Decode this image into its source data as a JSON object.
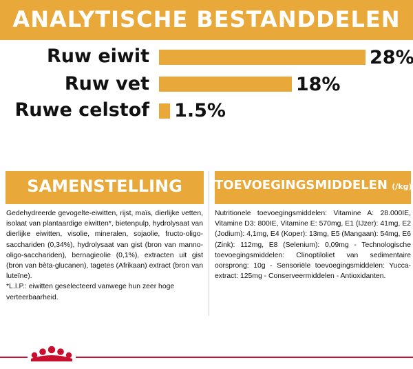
{
  "header": {
    "title": "ANALYTISCHE BESTANDDELEN"
  },
  "nutrients": [
    {
      "label": "Ruw eiwit",
      "value": "28%",
      "percent": 28
    },
    {
      "label": "Ruw vet",
      "value": "18%",
      "percent": 18
    },
    {
      "label": "Ruwe celstof",
      "value": "1.5%",
      "percent": 1.5
    }
  ],
  "composition": {
    "title": "SAMENSTELLING",
    "text": "Gedehydreerde gevogelte-eiwitten, rijst, maïs, dierlijke vetten, isolaat van plantaardige eiwitten*, bietenpulp, hydrolysaat van dierlijke eiwitten, visolie, mineralen, sojaolie, fructo-oligo-sacchariden (0,34%), hydrolysaat van gist (bron van manno-oligo-sacchariden), bernagieolie (0,1%), extracten uit gist (bron van bèta-glucanen), tagetes (Afrikaan) extract (bron van luteïne).",
    "note": "*L.I.P.: eiwitten geselecteerd vanwege hun zeer hoge verteerbaarheid."
  },
  "additives": {
    "title": "TOEVOEGINGSMIDDELEN",
    "unit": "(/kg)",
    "text": "Nutritionele toevoegingsmiddelen: Vitamine A: 28.000IE, Vitamine D3: 800IE, Vitamine E: 570mg, E1 (IJzer): 41mg, E2 (Jodium): 4,1mg, E4 (Koper): 13mg, E5 (Mangaan): 54mg, E6 (Zink): 112mg, E8 (Selenium): 0,09mg - Technologische toevoegingsmiddelen: Clinoptiloliet van sedimentaire oorsprong: 10g - Sensoriële toevoegingsmiddelen: Yucca-extract: 125mg - Conserveermiddelen - Antioxidanten."
  },
  "colors": {
    "accent": "#e8a93a",
    "brand_red": "#c8102e",
    "text": "#111111"
  },
  "logo": {
    "name": "royal-canin-crown-logo"
  }
}
